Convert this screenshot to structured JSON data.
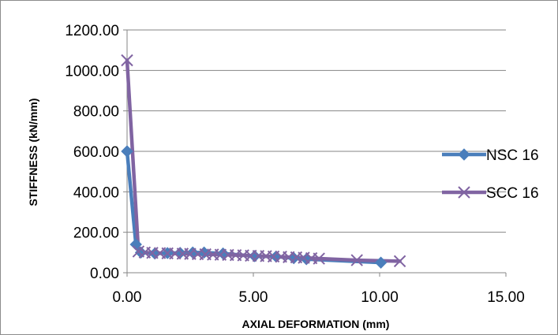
{
  "chart_data": {
    "type": "scatter",
    "title": "",
    "xlabel": "AXIAL DEFORMATION (mm)",
    "ylabel": "STIFFNESS (kN/mm)",
    "xlim": [
      0,
      15
    ],
    "ylim": [
      0,
      1200
    ],
    "xticks": [
      "0.00",
      "5.00",
      "10.00",
      "15.00"
    ],
    "yticks": [
      "0.00",
      "200.00",
      "400.00",
      "600.00",
      "800.00",
      "1000.00",
      "1200.00"
    ],
    "grid": "horizontal",
    "legend_position": "right",
    "series": [
      {
        "name": "NSC 16",
        "marker": "diamond",
        "color": "#4a7ebb",
        "x": [
          0.0,
          0.35,
          0.55,
          1.1,
          1.6,
          2.1,
          2.6,
          3.05,
          3.8,
          5.05,
          5.9,
          6.6,
          7.1,
          10.05
        ],
        "y": [
          600,
          140,
          100,
          95,
          97,
          98,
          100,
          100,
          95,
          82,
          80,
          72,
          67,
          50
        ]
      },
      {
        "name": "SCC 16",
        "marker": "x",
        "color": "#8064a2",
        "x": [
          0.0,
          0.45,
          0.7,
          1.0,
          1.3,
          1.6,
          1.9,
          2.2,
          2.5,
          2.8,
          3.1,
          3.4,
          3.7,
          4.0,
          4.3,
          4.6,
          4.9,
          5.2,
          5.5,
          5.8,
          6.1,
          6.4,
          6.7,
          7.0,
          7.3,
          7.6,
          9.1,
          10.8
        ],
        "y": [
          1050,
          105,
          100,
          98,
          97,
          96,
          95,
          94,
          93,
          92,
          91,
          90,
          89,
          88,
          87,
          86,
          84,
          83,
          82,
          80,
          79,
          77,
          76,
          74,
          72,
          70,
          62,
          57
        ]
      }
    ]
  }
}
